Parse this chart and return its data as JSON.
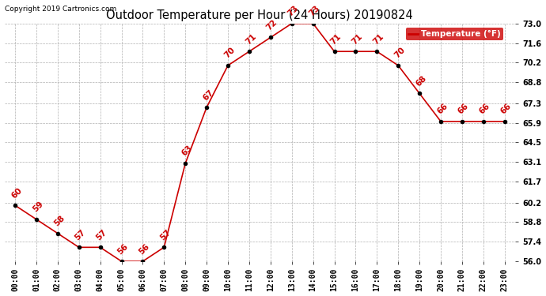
{
  "title": "Outdoor Temperature per Hour (24 Hours) 20190824",
  "copyright": "Copyright 2019 Cartronics.com",
  "legend_label": "Temperature (°F)",
  "hours": [
    0,
    1,
    2,
    3,
    4,
    5,
    6,
    7,
    8,
    9,
    10,
    11,
    12,
    13,
    14,
    15,
    16,
    17,
    18,
    19,
    20,
    21,
    22,
    23
  ],
  "temps": [
    60,
    59,
    58,
    57,
    57,
    56,
    56,
    57,
    63,
    67,
    70,
    71,
    72,
    73,
    73,
    71,
    71,
    71,
    70,
    68,
    66,
    66,
    66,
    66
  ],
  "ylim": [
    56.0,
    73.0
  ],
  "yticks": [
    56.0,
    57.4,
    58.8,
    60.2,
    61.7,
    63.1,
    64.5,
    65.9,
    67.3,
    68.8,
    70.2,
    71.6,
    73.0
  ],
  "line_color": "#cc0000",
  "marker_color": "#000000",
  "label_color": "#cc0000",
  "bg_color": "#ffffff",
  "grid_color": "#b0b0b0",
  "title_color": "#000000",
  "copyright_color": "#000000",
  "legend_bg": "#cc0000",
  "legend_text_color": "#ffffff",
  "label_fontsize": 7.5,
  "tick_fontsize": 7.0,
  "title_fontsize": 10.5
}
